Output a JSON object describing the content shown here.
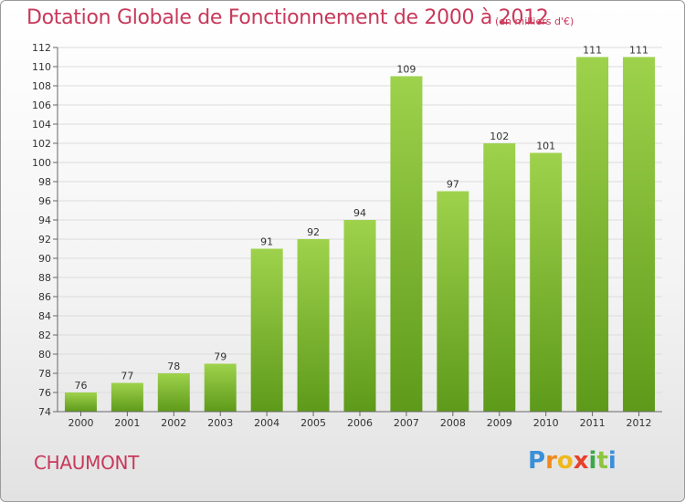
{
  "title": "Dotation Globale de Fonctionnement de 2000 à 2012",
  "unit_note": "(en milliers d'€)",
  "city": "CHAUMONT",
  "logo": {
    "text": "Proxiti"
  },
  "colors": {
    "title": "#c8385a",
    "bar_top": "#9ed24c",
    "bar_bottom": "#5e9a1a"
  },
  "chart_data": {
    "type": "bar",
    "categories": [
      "2000",
      "2001",
      "2002",
      "2003",
      "2004",
      "2005",
      "2006",
      "2007",
      "2008",
      "2009",
      "2010",
      "2011",
      "2012"
    ],
    "values": [
      76,
      77,
      78,
      79,
      91,
      92,
      94,
      109,
      97,
      102,
      101,
      111,
      111
    ],
    "data_labels": [
      "76",
      "77",
      "78",
      "79",
      "91",
      "92",
      "94",
      "109",
      "97",
      "102",
      "101",
      "111",
      "111"
    ],
    "ylim": [
      74,
      112
    ],
    "yticks": [
      "74",
      "76",
      "78",
      "80",
      "82",
      "84",
      "86",
      "88",
      "90",
      "92",
      "94",
      "96",
      "98",
      "100",
      "102",
      "104",
      "106",
      "108",
      "110",
      "112"
    ],
    "grid": true,
    "xlabel": "",
    "ylabel": ""
  }
}
